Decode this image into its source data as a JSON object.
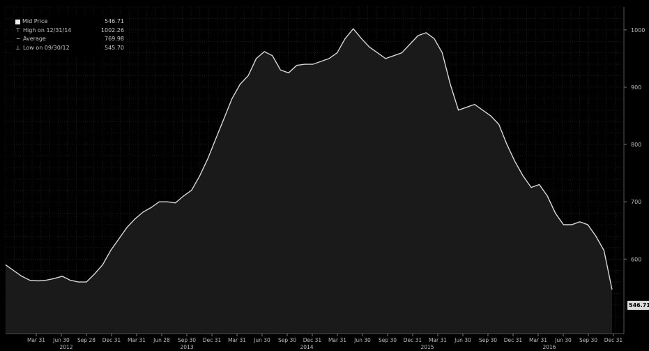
{
  "legend": {
    "mid_price": {
      "label": "Mid Price",
      "value": "546.71"
    },
    "high": {
      "label": "High on 12/31/14",
      "value": "1002.26"
    },
    "average": {
      "label": "Average",
      "value": "769.98"
    },
    "low": {
      "label": "Low on 09/30/12",
      "value": "545.70"
    }
  },
  "last_price_tag": "546.71",
  "colors": {
    "background": "#000000",
    "area": "#1a1a1a",
    "line": "#d8d8d8",
    "grid": "#2a2a2a",
    "text": "#bdbdbd"
  },
  "chart_data": {
    "type": "area",
    "title": "",
    "xlabel": "",
    "ylabel": "",
    "y_axis_side": "right",
    "grid": true,
    "legend_position": "top-left",
    "ylim": [
      470,
      1040
    ],
    "y_ticks": [
      600,
      700,
      800,
      900,
      1000
    ],
    "x_tick_labels": [
      "Mar 31",
      "Jun 30",
      "Sep 28",
      "Dec 31",
      "Mar 31",
      "Jun 28",
      "Sep 30",
      "Dec 31",
      "Mar 31",
      "Jun 30",
      "Sep 30",
      "Dec 31",
      "Mar 31",
      "Jun 30",
      "Sep 30",
      "Dec 31",
      "Mar 31",
      "Jun 30",
      "Sep 30",
      "Dec 31",
      "Mar 31",
      "Jun 30",
      "Sep 30",
      "Dec 31"
    ],
    "year_labels": [
      "2012",
      "2013",
      "2014",
      "2015",
      "2016"
    ],
    "series": [
      {
        "values": [
          590,
          580,
          570,
          563,
          562,
          563,
          566,
          570,
          563,
          560,
          560,
          574,
          590,
          615,
          635,
          655,
          670,
          682,
          690,
          700,
          700,
          698,
          710,
          720,
          745,
          775,
          810,
          845,
          880,
          905,
          920,
          950,
          962,
          955,
          930,
          925,
          938,
          940,
          940,
          945,
          950,
          960,
          985,
          1002,
          985,
          970,
          960,
          950,
          955,
          960,
          975,
          990,
          995,
          985,
          960,
          905,
          860,
          865,
          870,
          860,
          850,
          835,
          800,
          770,
          745,
          725,
          730,
          710,
          680,
          660,
          660,
          665,
          660,
          640,
          615,
          546.71
        ]
      }
    ]
  }
}
